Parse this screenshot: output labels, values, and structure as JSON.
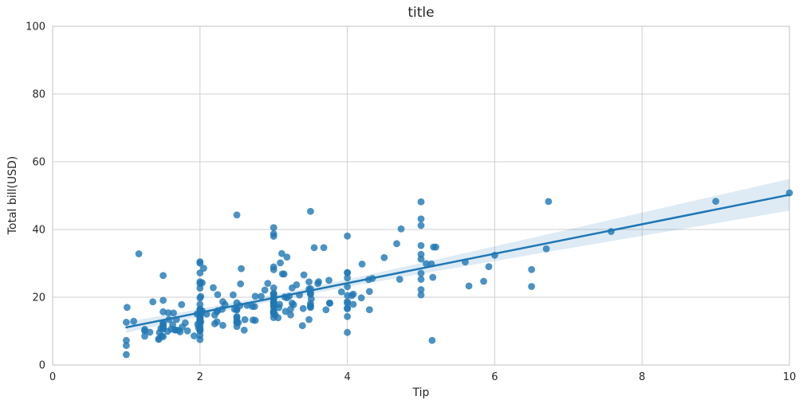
{
  "chart_data": {
    "type": "scatter",
    "title": "title",
    "xlabel": "Tip",
    "ylabel": "Total bill(USD)",
    "xlim": [
      0,
      10
    ],
    "ylim": [
      0,
      100
    ],
    "xticks": [
      0,
      2,
      4,
      6,
      8,
      10
    ],
    "yticks": [
      0,
      20,
      40,
      60,
      80,
      100
    ],
    "grid": true,
    "legend": null,
    "colors": {
      "point": "#1f77b4",
      "line": "#1f77b4",
      "band": "#1f77b4",
      "grid": "#cfcfcf",
      "spine": "#cccccc",
      "text": "#262626",
      "background": "#ffffff"
    },
    "style": {
      "point_radius": 4.4,
      "point_opacity": 0.8,
      "line_width": 2.5,
      "band_opacity": 0.15
    },
    "regression": {
      "x_start": 1.0,
      "x_end": 10.0,
      "intercept": 6.75,
      "slope": 4.35
    },
    "ci_band": {
      "x": [
        1,
        1.5,
        2,
        2.5,
        3,
        3.5,
        4,
        4.5,
        5,
        5.5,
        6,
        6.5,
        7,
        7.5,
        8,
        8.5,
        9,
        9.5,
        10
      ],
      "half_width": [
        1.6,
        1.35,
        1.12,
        0.97,
        0.91,
        0.97,
        1.12,
        1.35,
        1.6,
        1.88,
        2.18,
        2.48,
        2.79,
        3.1,
        3.42,
        3.74,
        4.06,
        4.38,
        4.7
      ]
    },
    "points": [
      [
        1.01,
        16.99
      ],
      [
        1.66,
        10.34
      ],
      [
        3.5,
        21.01
      ],
      [
        3.31,
        23.68
      ],
      [
        3.61,
        24.59
      ],
      [
        4.71,
        25.29
      ],
      [
        2.0,
        8.77
      ],
      [
        3.12,
        26.88
      ],
      [
        1.96,
        15.04
      ],
      [
        3.23,
        14.78
      ],
      [
        1.71,
        10.27
      ],
      [
        5.0,
        35.26
      ],
      [
        1.57,
        15.42
      ],
      [
        3.0,
        18.43
      ],
      [
        3.02,
        14.83
      ],
      [
        3.92,
        21.58
      ],
      [
        1.67,
        10.33
      ],
      [
        3.71,
        16.29
      ],
      [
        3.5,
        16.97
      ],
      [
        3.35,
        20.65
      ],
      [
        4.08,
        17.92
      ],
      [
        2.75,
        20.29
      ],
      [
        2.23,
        15.77
      ],
      [
        7.58,
        39.42
      ],
      [
        3.18,
        19.82
      ],
      [
        2.34,
        17.81
      ],
      [
        2.0,
        13.37
      ],
      [
        2.0,
        12.69
      ],
      [
        4.3,
        21.7
      ],
      [
        3.0,
        19.65
      ],
      [
        1.45,
        9.55
      ],
      [
        2.5,
        18.35
      ],
      [
        3.0,
        15.06
      ],
      [
        2.45,
        20.69
      ],
      [
        3.27,
        17.78
      ],
      [
        3.6,
        24.06
      ],
      [
        2.0,
        16.31
      ],
      [
        3.07,
        16.93
      ],
      [
        2.31,
        18.69
      ],
      [
        5.0,
        31.27
      ],
      [
        2.24,
        16.04
      ],
      [
        2.54,
        17.46
      ],
      [
        3.06,
        13.94
      ],
      [
        1.32,
        9.68
      ],
      [
        5.6,
        30.4
      ],
      [
        3.0,
        18.29
      ],
      [
        5.0,
        22.23
      ],
      [
        6.0,
        32.4
      ],
      [
        2.05,
        28.55
      ],
      [
        3.0,
        18.04
      ],
      [
        2.5,
        12.54
      ],
      [
        2.6,
        10.29
      ],
      [
        5.2,
        34.81
      ],
      [
        1.56,
        9.94
      ],
      [
        4.34,
        25.56
      ],
      [
        3.51,
        19.49
      ],
      [
        3.0,
        38.01
      ],
      [
        1.5,
        26.41
      ],
      [
        1.76,
        11.24
      ],
      [
        6.73,
        48.27
      ],
      [
        3.21,
        20.29
      ],
      [
        2.0,
        13.81
      ],
      [
        1.98,
        11.02
      ],
      [
        3.76,
        18.29
      ],
      [
        2.64,
        17.59
      ],
      [
        3.15,
        20.08
      ],
      [
        2.47,
        16.45
      ],
      [
        1.0,
        3.07
      ],
      [
        2.01,
        20.23
      ],
      [
        2.09,
        15.01
      ],
      [
        1.97,
        12.02
      ],
      [
        3.0,
        17.07
      ],
      [
        3.14,
        26.86
      ],
      [
        5.0,
        25.28
      ],
      [
        2.2,
        14.73
      ],
      [
        1.25,
        10.51
      ],
      [
        3.08,
        17.92
      ],
      [
        4.0,
        27.2
      ],
      [
        3.0,
        22.76
      ],
      [
        2.71,
        17.29
      ],
      [
        3.0,
        19.44
      ],
      [
        3.4,
        16.66
      ],
      [
        1.83,
        10.07
      ],
      [
        5.0,
        32.68
      ],
      [
        2.03,
        15.98
      ],
      [
        5.17,
        34.83
      ],
      [
        2.0,
        13.03
      ],
      [
        4.0,
        18.28
      ],
      [
        5.85,
        24.71
      ],
      [
        3.0,
        21.16
      ],
      [
        3.0,
        28.97
      ],
      [
        3.5,
        22.49
      ],
      [
        1.0,
        5.75
      ],
      [
        4.3,
        16.32
      ],
      [
        3.25,
        22.75
      ],
      [
        4.73,
        40.17
      ],
      [
        4.0,
        27.28
      ],
      [
        1.5,
        12.03
      ],
      [
        3.0,
        21.01
      ],
      [
        1.5,
        12.46
      ],
      [
        2.5,
        11.35
      ],
      [
        3.0,
        15.38
      ],
      [
        2.5,
        44.3
      ],
      [
        3.48,
        22.42
      ],
      [
        4.08,
        20.92
      ],
      [
        1.64,
        15.36
      ],
      [
        4.06,
        20.49
      ],
      [
        4.29,
        25.21
      ],
      [
        3.76,
        18.24
      ],
      [
        4.0,
        14.31
      ],
      [
        3.0,
        14.0
      ],
      [
        1.0,
        7.25
      ],
      [
        4.0,
        38.07
      ],
      [
        2.55,
        23.95
      ],
      [
        4.0,
        25.71
      ],
      [
        3.5,
        17.31
      ],
      [
        5.07,
        29.93
      ],
      [
        1.5,
        10.65
      ],
      [
        1.8,
        12.43
      ],
      [
        2.92,
        24.08
      ],
      [
        2.31,
        11.69
      ],
      [
        1.68,
        13.42
      ],
      [
        2.5,
        14.26
      ],
      [
        2.0,
        15.95
      ],
      [
        2.52,
        12.48
      ],
      [
        4.2,
        29.8
      ],
      [
        1.48,
        8.52
      ],
      [
        2.0,
        14.52
      ],
      [
        2.0,
        11.38
      ],
      [
        2.18,
        22.82
      ],
      [
        1.5,
        19.08
      ],
      [
        2.83,
        20.27
      ],
      [
        1.5,
        11.17
      ],
      [
        2.0,
        12.26
      ],
      [
        3.25,
        18.26
      ],
      [
        1.25,
        8.51
      ],
      [
        2.0,
        10.33
      ],
      [
        2.0,
        14.15
      ],
      [
        2.0,
        16.0
      ],
      [
        2.75,
        13.16
      ],
      [
        3.5,
        17.47
      ],
      [
        6.7,
        34.3
      ],
      [
        5.0,
        41.19
      ],
      [
        5.0,
        27.05
      ],
      [
        2.3,
        16.43
      ],
      [
        1.5,
        8.35
      ],
      [
        1.36,
        18.64
      ],
      [
        1.63,
        11.87
      ],
      [
        1.73,
        9.78
      ],
      [
        2.0,
        7.51
      ],
      [
        2.5,
        14.07
      ],
      [
        2.0,
        13.13
      ],
      [
        2.74,
        17.26
      ],
      [
        2.0,
        24.55
      ],
      [
        2.0,
        19.77
      ],
      [
        5.14,
        29.85
      ],
      [
        5.0,
        48.17
      ],
      [
        3.75,
        25.0
      ],
      [
        2.61,
        13.39
      ],
      [
        2.0,
        16.49
      ],
      [
        3.5,
        21.5
      ],
      [
        2.5,
        12.66
      ],
      [
        2.0,
        16.21
      ],
      [
        2.0,
        13.81
      ],
      [
        3.0,
        17.51
      ],
      [
        3.48,
        24.52
      ],
      [
        2.24,
        20.76
      ],
      [
        4.5,
        31.71
      ],
      [
        1.61,
        10.59
      ],
      [
        2.0,
        10.63
      ],
      [
        10.0,
        50.81
      ],
      [
        3.16,
        15.81
      ],
      [
        5.15,
        7.25
      ],
      [
        3.18,
        31.85
      ],
      [
        4.0,
        16.82
      ],
      [
        3.11,
        32.9
      ],
      [
        2.0,
        17.89
      ],
      [
        2.0,
        14.48
      ],
      [
        4.0,
        9.6
      ],
      [
        3.55,
        34.63
      ],
      [
        3.68,
        34.65
      ],
      [
        5.65,
        23.33
      ],
      [
        3.5,
        45.35
      ],
      [
        6.5,
        23.17
      ],
      [
        3.0,
        40.55
      ],
      [
        5.0,
        20.69
      ],
      [
        3.5,
        20.9
      ],
      [
        2.0,
        30.46
      ],
      [
        3.5,
        18.15
      ],
      [
        4.0,
        23.1
      ],
      [
        1.5,
        15.69
      ],
      [
        4.19,
        19.81
      ],
      [
        2.56,
        28.44
      ],
      [
        2.02,
        15.48
      ],
      [
        4.0,
        16.58
      ],
      [
        1.44,
        7.56
      ],
      [
        2.0,
        10.34
      ],
      [
        5.0,
        43.11
      ],
      [
        2.0,
        13.0
      ],
      [
        2.0,
        13.51
      ],
      [
        4.0,
        18.71
      ],
      [
        2.01,
        12.74
      ],
      [
        2.0,
        13.0
      ],
      [
        2.5,
        16.4
      ],
      [
        4.0,
        20.53
      ],
      [
        3.23,
        16.47
      ],
      [
        3.41,
        26.59
      ],
      [
        3.0,
        38.73
      ],
      [
        2.03,
        24.27
      ],
      [
        2.23,
        12.76
      ],
      [
        2.0,
        30.06
      ],
      [
        5.16,
        25.89
      ],
      [
        9.0,
        48.33
      ],
      [
        2.5,
        13.27
      ],
      [
        6.5,
        28.17
      ],
      [
        1.1,
        12.9
      ],
      [
        3.0,
        28.15
      ],
      [
        1.5,
        11.59
      ],
      [
        1.44,
        7.74
      ],
      [
        3.09,
        30.14
      ],
      [
        2.2,
        12.16
      ],
      [
        3.48,
        13.42
      ],
      [
        1.92,
        8.58
      ],
      [
        3.0,
        15.98
      ],
      [
        1.58,
        13.42
      ],
      [
        2.5,
        16.27
      ],
      [
        2.0,
        10.09
      ],
      [
        3.0,
        20.45
      ],
      [
        2.72,
        13.28
      ],
      [
        2.88,
        22.12
      ],
      [
        2.0,
        24.01
      ],
      [
        3.0,
        15.69
      ],
      [
        3.39,
        11.61
      ],
      [
        1.47,
        10.77
      ],
      [
        3.0,
        15.53
      ],
      [
        1.25,
        10.07
      ],
      [
        1.0,
        12.6
      ],
      [
        1.17,
        32.83
      ],
      [
        4.67,
        35.83
      ],
      [
        5.92,
        29.03
      ],
      [
        2.0,
        27.18
      ],
      [
        2.0,
        22.67
      ],
      [
        1.75,
        17.82
      ],
      [
        3.0,
        18.78
      ]
    ]
  }
}
